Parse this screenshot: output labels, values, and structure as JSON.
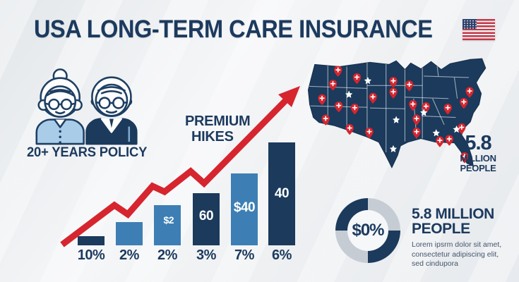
{
  "header": {
    "title": "USA LONG-TERM CARE INSURANCE"
  },
  "icons": {
    "flag": "us-flag-icon",
    "couple": "elderly-couple-icon",
    "arrow": "rising-arrow-icon",
    "pin": "map-pin-icon",
    "star": "star-icon"
  },
  "left_panel": {
    "caption": "20+ YEARS POLICY"
  },
  "chart_label": {
    "line1": "PREMIUM",
    "line2": "HIKES"
  },
  "map_section": {
    "stat_value": "5.8",
    "stat_unit": "MILLION",
    "stat_noun": "PEOPLE"
  },
  "donut_section": {
    "center_text": "$0%",
    "heading_line1": "5.8 MILLION",
    "heading_line2": "PEOPLE",
    "body_lines": [
      "Lorem ipsrm dolor sit amet,",
      "consectetur adipiscing elit,",
      "sed cindupora"
    ]
  },
  "colors": {
    "navy": "#1b3a5c",
    "blue": "#3d7fb4",
    "light_blue": "#a9cde9",
    "red": "#d6252e",
    "donut_gray": "#c6ccd3",
    "body_text": "#44566b",
    "background": "#eef0f2"
  },
  "chart_data": [
    {
      "type": "bar",
      "title": "PREMIUM HIKES",
      "categories": [
        "10%",
        "2%",
        "2%",
        "3%",
        "7%",
        "6%"
      ],
      "values": [
        13,
        33,
        57,
        74,
        102,
        146
      ],
      "bar_texts": [
        "",
        "",
        "$2",
        "60",
        "$40",
        "40"
      ],
      "bar_colors": [
        "#1b3a5c",
        "#3d7fb4",
        "#3d7fb4",
        "#1b3a5c",
        "#3d7fb4",
        "#1b3a5c"
      ],
      "xlabel": "",
      "ylabel": "",
      "grid": false,
      "legend": false,
      "annotation": "red zig-zag arrow rising left-to-right above bars"
    },
    {
      "type": "pie",
      "donut": true,
      "title": "5.8 MILLION PEOPLE",
      "center_label": "$0%",
      "slices": [
        {
          "value": 25,
          "color": "#c6ccd3"
        },
        {
          "value": 25,
          "color": "#1b3a5c"
        },
        {
          "value": 25,
          "color": "#c6ccd3"
        },
        {
          "value": 25,
          "color": "#1b3a5c"
        }
      ],
      "legend": false
    }
  ]
}
